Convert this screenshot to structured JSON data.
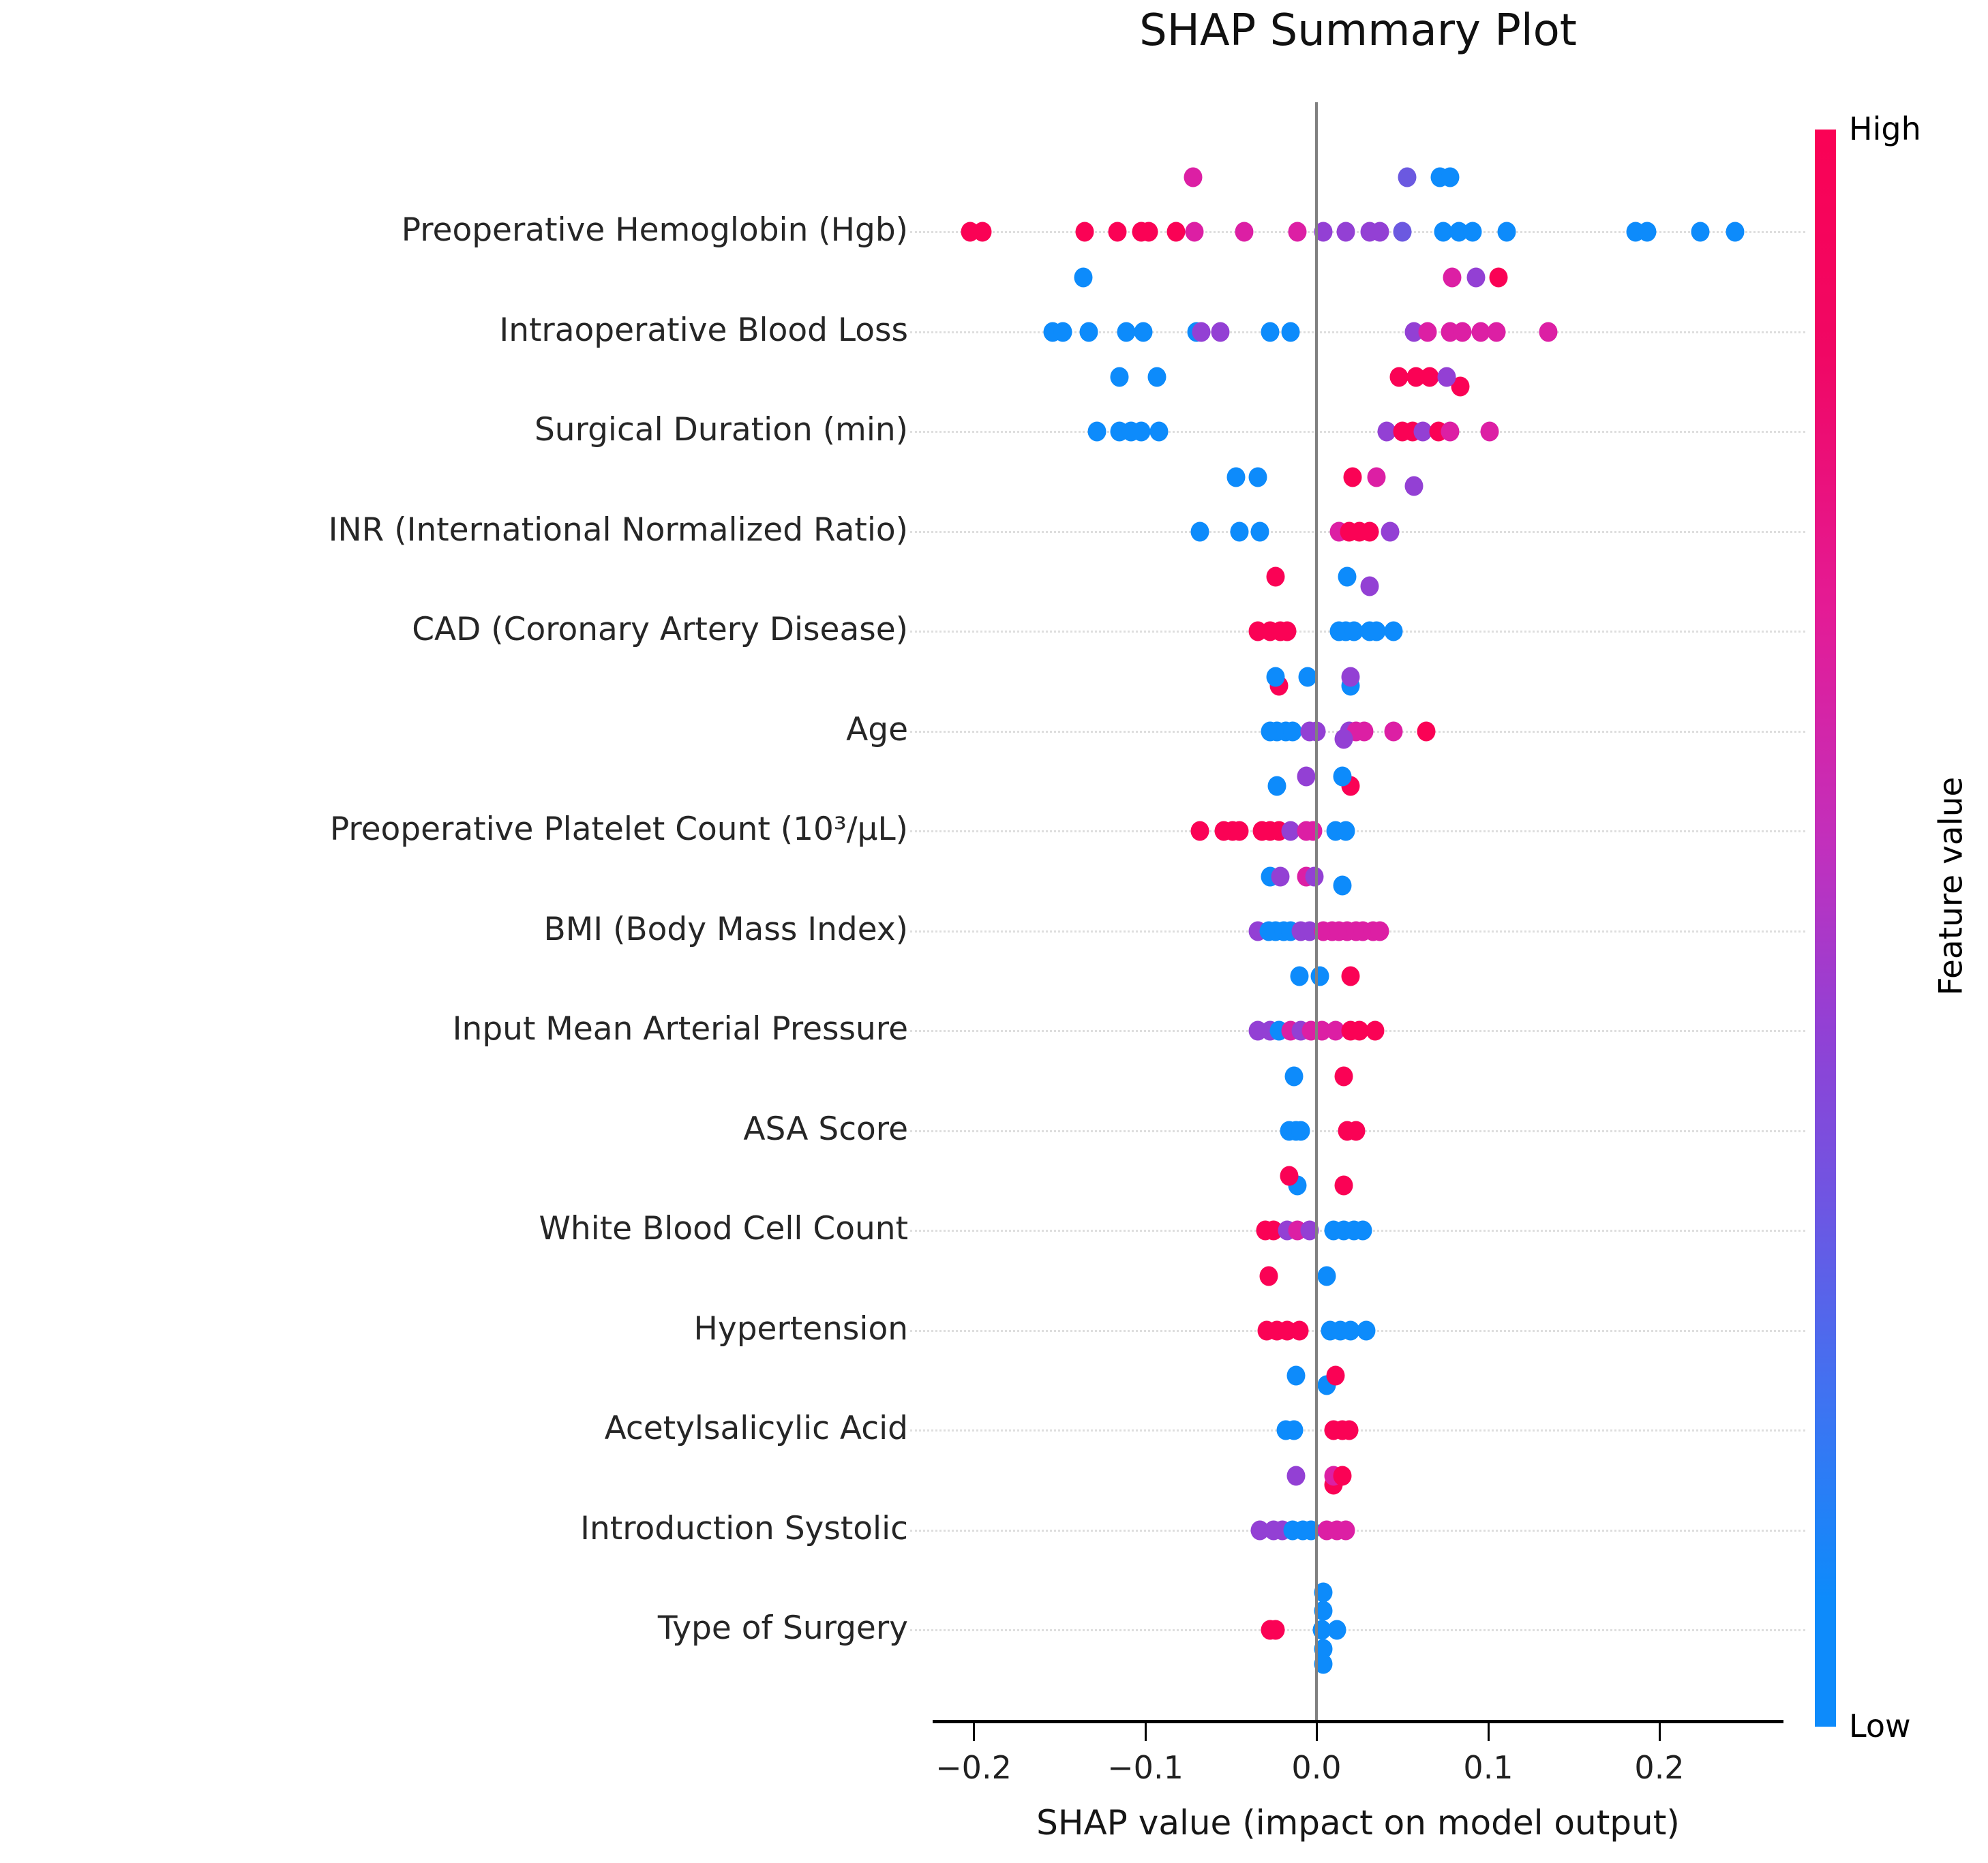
{
  "chart_data": {
    "type": "scatter",
    "variant": "shap-beeswarm",
    "title": "SHAP Summary Plot",
    "xlabel": "SHAP value (impact on model output)",
    "xlim": [
      -0.225,
      0.27
    ],
    "zero_line": 0.0,
    "grid": "dotted-horizontal-per-feature",
    "x_ticks": [
      {
        "v": -0.2,
        "label": "−0.2"
      },
      {
        "v": -0.1,
        "label": "−0.1"
      },
      {
        "v": 0.0,
        "label": "0.0"
      },
      {
        "v": 0.1,
        "label": "0.1"
      },
      {
        "v": 0.2,
        "label": "0.2"
      }
    ],
    "colorbar": {
      "high_label": "High",
      "low_label": "Low",
      "axis_label": "Feature value",
      "high_color": "#fa0255",
      "low_color": "#0d8bfb"
    },
    "palette": {
      "r": "#fa0255",
      "m": "#dc1fa4",
      "p": "#9340d4",
      "v": "#6b59e0",
      "b": "#0d8bfb"
    },
    "point_format": "[shap_value, vertical_jitter_px, color_key]",
    "features": [
      {
        "label": "Preoperative Hemoglobin (Hgb)",
        "points": [
          [
            -0.202,
            0,
            "r"
          ],
          [
            -0.195,
            0,
            "r"
          ],
          [
            -0.135,
            0,
            "r"
          ],
          [
            -0.116,
            0,
            "r"
          ],
          [
            -0.102,
            0,
            "r"
          ],
          [
            -0.098,
            0,
            "r"
          ],
          [
            -0.082,
            0,
            "r"
          ],
          [
            -0.072,
            -80,
            "m"
          ],
          [
            -0.071,
            0,
            "m"
          ],
          [
            -0.042,
            0,
            "m"
          ],
          [
            -0.011,
            0,
            "m"
          ],
          [
            0.004,
            0,
            "p"
          ],
          [
            0.017,
            0,
            "p"
          ],
          [
            0.031,
            0,
            "p"
          ],
          [
            0.037,
            0,
            "p"
          ],
          [
            0.05,
            0,
            "v"
          ],
          [
            0.053,
            -80,
            "v"
          ],
          [
            0.072,
            -80,
            "b"
          ],
          [
            0.078,
            -80,
            "b"
          ],
          [
            0.074,
            0,
            "b"
          ],
          [
            0.083,
            0,
            "b"
          ],
          [
            0.091,
            0,
            "b"
          ],
          [
            0.111,
            0,
            "b"
          ],
          [
            0.186,
            0,
            "b"
          ],
          [
            0.193,
            0,
            "b"
          ],
          [
            0.224,
            0,
            "b"
          ],
          [
            0.244,
            0,
            "b"
          ]
        ]
      },
      {
        "label": "Intraoperative Blood Loss",
        "points": [
          [
            -0.154,
            0,
            "b"
          ],
          [
            -0.148,
            0,
            "b"
          ],
          [
            -0.136,
            -80,
            "b"
          ],
          [
            -0.133,
            0,
            "b"
          ],
          [
            -0.111,
            0,
            "b"
          ],
          [
            -0.101,
            0,
            "b"
          ],
          [
            -0.07,
            0,
            "b"
          ],
          [
            -0.067,
            0,
            "p"
          ],
          [
            -0.056,
            0,
            "p"
          ],
          [
            -0.027,
            0,
            "b"
          ],
          [
            -0.015,
            0,
            "b"
          ],
          [
            0.057,
            0,
            "p"
          ],
          [
            0.065,
            0,
            "m"
          ],
          [
            0.078,
            0,
            "m"
          ],
          [
            0.079,
            -80,
            "m"
          ],
          [
            0.084,
            80,
            "r"
          ],
          [
            0.085,
            0,
            "m"
          ],
          [
            0.093,
            -80,
            "p"
          ],
          [
            0.096,
            0,
            "m"
          ],
          [
            0.105,
            0,
            "m"
          ],
          [
            0.106,
            -80,
            "r"
          ],
          [
            0.135,
            0,
            "m"
          ]
        ]
      },
      {
        "label": "Surgical Duration (min)",
        "points": [
          [
            -0.128,
            0,
            "b"
          ],
          [
            -0.115,
            -80,
            "b"
          ],
          [
            -0.115,
            0,
            "b"
          ],
          [
            -0.108,
            0,
            "b"
          ],
          [
            -0.102,
            0,
            "b"
          ],
          [
            -0.093,
            -80,
            "b"
          ],
          [
            -0.092,
            0,
            "b"
          ],
          [
            0.041,
            0,
            "p"
          ],
          [
            0.048,
            -80,
            "r"
          ],
          [
            0.05,
            0,
            "r"
          ],
          [
            0.056,
            0,
            "r"
          ],
          [
            0.057,
            80,
            "p"
          ],
          [
            0.058,
            -80,
            "r"
          ],
          [
            0.062,
            0,
            "p"
          ],
          [
            0.066,
            -80,
            "r"
          ],
          [
            0.071,
            0,
            "r"
          ],
          [
            0.076,
            -80,
            "p"
          ],
          [
            0.078,
            0,
            "m"
          ],
          [
            0.101,
            0,
            "m"
          ]
        ]
      },
      {
        "label": "INR (International Normalized Ratio)",
        "points": [
          [
            -0.068,
            0,
            "b"
          ],
          [
            -0.047,
            -80,
            "b"
          ],
          [
            -0.045,
            0,
            "b"
          ],
          [
            -0.034,
            -80,
            "b"
          ],
          [
            -0.033,
            0,
            "b"
          ],
          [
            0.013,
            0,
            "m"
          ],
          [
            0.019,
            0,
            "r"
          ],
          [
            0.021,
            -80,
            "r"
          ],
          [
            0.025,
            0,
            "r"
          ],
          [
            0.031,
            0,
            "r"
          ],
          [
            0.031,
            80,
            "p"
          ],
          [
            0.035,
            -80,
            "m"
          ],
          [
            0.043,
            0,
            "p"
          ]
        ]
      },
      {
        "label": "CAD (Coronary Artery Disease)",
        "points": [
          [
            -0.034,
            0,
            "r"
          ],
          [
            -0.027,
            0,
            "r"
          ],
          [
            -0.024,
            -80,
            "r"
          ],
          [
            -0.022,
            80,
            "r"
          ],
          [
            -0.021,
            0,
            "r"
          ],
          [
            -0.017,
            0,
            "r"
          ],
          [
            0.013,
            0,
            "b"
          ],
          [
            0.017,
            0,
            "b"
          ],
          [
            0.018,
            -80,
            "b"
          ],
          [
            0.02,
            80,
            "b"
          ],
          [
            0.022,
            0,
            "b"
          ],
          [
            0.031,
            0,
            "b"
          ],
          [
            0.035,
            0,
            "b"
          ],
          [
            0.045,
            0,
            "b"
          ]
        ]
      },
      {
        "label": "Age",
        "points": [
          [
            -0.027,
            0,
            "b"
          ],
          [
            -0.024,
            -80,
            "b"
          ],
          [
            -0.023,
            0,
            "b"
          ],
          [
            -0.023,
            80,
            "b"
          ],
          [
            -0.018,
            0,
            "b"
          ],
          [
            -0.014,
            0,
            "b"
          ],
          [
            -0.005,
            -80,
            "b"
          ],
          [
            -0.004,
            0,
            "p"
          ],
          [
            0.0,
            0,
            "p"
          ],
          [
            0.019,
            0,
            "p"
          ],
          [
            0.02,
            -80,
            "p"
          ],
          [
            0.02,
            80,
            "r"
          ],
          [
            0.023,
            0,
            "m"
          ],
          [
            0.028,
            0,
            "m"
          ],
          [
            0.045,
            0,
            "m"
          ],
          [
            0.064,
            0,
            "r"
          ]
        ]
      },
      {
        "label": "Preoperative Platelet Count (10³/μL)",
        "points": [
          [
            -0.068,
            0,
            "r"
          ],
          [
            -0.054,
            0,
            "r"
          ],
          [
            -0.049,
            0,
            "r"
          ],
          [
            -0.045,
            0,
            "r"
          ],
          [
            -0.032,
            0,
            "r"
          ],
          [
            -0.027,
            0,
            "r"
          ],
          [
            -0.022,
            0,
            "r"
          ],
          [
            -0.015,
            0,
            "p"
          ],
          [
            -0.006,
            -80,
            "p"
          ],
          [
            -0.006,
            0,
            "m"
          ],
          [
            -0.002,
            0,
            "m"
          ],
          [
            0.011,
            0,
            "b"
          ],
          [
            0.015,
            -80,
            "b"
          ],
          [
            0.015,
            80,
            "b"
          ],
          [
            0.016,
            -135,
            "p"
          ],
          [
            0.017,
            0,
            "b"
          ]
        ]
      },
      {
        "label": "BMI (Body Mass Index)",
        "points": [
          [
            -0.034,
            0,
            "p"
          ],
          [
            -0.028,
            0,
            "b"
          ],
          [
            -0.027,
            -80,
            "b"
          ],
          [
            -0.024,
            0,
            "b"
          ],
          [
            -0.021,
            -80,
            "p"
          ],
          [
            -0.019,
            0,
            "b"
          ],
          [
            -0.015,
            0,
            "b"
          ],
          [
            -0.009,
            0,
            "p"
          ],
          [
            -0.006,
            -80,
            "m"
          ],
          [
            -0.004,
            0,
            "p"
          ],
          [
            -0.001,
            -80,
            "p"
          ],
          [
            0.004,
            0,
            "m"
          ],
          [
            0.009,
            0,
            "m"
          ],
          [
            0.013,
            0,
            "m"
          ],
          [
            0.018,
            0,
            "m"
          ],
          [
            0.023,
            0,
            "m"
          ],
          [
            0.027,
            0,
            "m"
          ],
          [
            0.033,
            0,
            "m"
          ],
          [
            0.037,
            0,
            "m"
          ]
        ]
      },
      {
        "label": "Input Mean Arterial Pressure",
        "points": [
          [
            -0.034,
            0,
            "p"
          ],
          [
            -0.027,
            0,
            "p"
          ],
          [
            -0.022,
            0,
            "b"
          ],
          [
            -0.015,
            0,
            "m"
          ],
          [
            -0.01,
            -80,
            "b"
          ],
          [
            -0.009,
            0,
            "p"
          ],
          [
            -0.003,
            0,
            "m"
          ],
          [
            0.002,
            -80,
            "b"
          ],
          [
            0.003,
            0,
            "m"
          ],
          [
            0.011,
            0,
            "m"
          ],
          [
            0.02,
            -80,
            "r"
          ],
          [
            0.02,
            0,
            "r"
          ],
          [
            0.025,
            0,
            "r"
          ],
          [
            0.034,
            0,
            "r"
          ]
        ]
      },
      {
        "label": "ASA Score",
        "points": [
          [
            -0.016,
            0,
            "b"
          ],
          [
            -0.013,
            -80,
            "b"
          ],
          [
            -0.012,
            0,
            "b"
          ],
          [
            -0.011,
            80,
            "b"
          ],
          [
            -0.009,
            0,
            "b"
          ],
          [
            0.016,
            -80,
            "r"
          ],
          [
            0.016,
            80,
            "r"
          ],
          [
            0.018,
            0,
            "r"
          ],
          [
            0.023,
            0,
            "r"
          ]
        ]
      },
      {
        "label": "White Blood Cell Count",
        "points": [
          [
            -0.03,
            0,
            "r"
          ],
          [
            -0.025,
            0,
            "r"
          ],
          [
            -0.016,
            -80,
            "r"
          ],
          [
            -0.017,
            0,
            "p"
          ],
          [
            -0.011,
            0,
            "m"
          ],
          [
            -0.004,
            0,
            "p"
          ],
          [
            0.01,
            0,
            "b"
          ],
          [
            0.016,
            0,
            "b"
          ],
          [
            0.022,
            0,
            "b"
          ],
          [
            0.027,
            0,
            "b"
          ]
        ]
      },
      {
        "label": "Hypertension",
        "points": [
          [
            -0.029,
            0,
            "r"
          ],
          [
            -0.028,
            -80,
            "r"
          ],
          [
            -0.023,
            0,
            "r"
          ],
          [
            -0.017,
            0,
            "r"
          ],
          [
            -0.01,
            0,
            "r"
          ],
          [
            0.006,
            -80,
            "b"
          ],
          [
            0.006,
            80,
            "b"
          ],
          [
            0.008,
            0,
            "b"
          ],
          [
            0.014,
            0,
            "b"
          ],
          [
            0.02,
            0,
            "b"
          ],
          [
            0.029,
            0,
            "b"
          ]
        ]
      },
      {
        "label": "Acetylsalicylic Acid",
        "points": [
          [
            -0.018,
            0,
            "b"
          ],
          [
            -0.013,
            0,
            "b"
          ],
          [
            -0.012,
            -80,
            "b"
          ],
          [
            0.01,
            80,
            "r"
          ],
          [
            0.01,
            0,
            "r"
          ],
          [
            0.011,
            -80,
            "r"
          ],
          [
            0.015,
            0,
            "r"
          ],
          [
            0.019,
            0,
            "r"
          ]
        ]
      },
      {
        "label": "Introduction Systolic",
        "points": [
          [
            -0.033,
            0,
            "p"
          ],
          [
            -0.025,
            0,
            "p"
          ],
          [
            -0.02,
            0,
            "p"
          ],
          [
            -0.014,
            0,
            "b"
          ],
          [
            -0.012,
            -80,
            "p"
          ],
          [
            -0.008,
            0,
            "b"
          ],
          [
            -0.003,
            0,
            "b"
          ],
          [
            0.006,
            0,
            "m"
          ],
          [
            0.01,
            -80,
            "m"
          ],
          [
            0.012,
            0,
            "m"
          ],
          [
            0.015,
            -80,
            "r"
          ],
          [
            0.017,
            0,
            "m"
          ]
        ]
      },
      {
        "label": "Type of Surgery",
        "points": [
          [
            -0.027,
            0,
            "r"
          ],
          [
            -0.024,
            0,
            "r"
          ],
          [
            0.003,
            0,
            "b"
          ],
          [
            0.004,
            -55,
            "b"
          ],
          [
            0.004,
            -28,
            "b"
          ],
          [
            0.004,
            28,
            "b"
          ],
          [
            0.004,
            50,
            "b"
          ],
          [
            0.012,
            0,
            "b"
          ]
        ]
      }
    ]
  }
}
